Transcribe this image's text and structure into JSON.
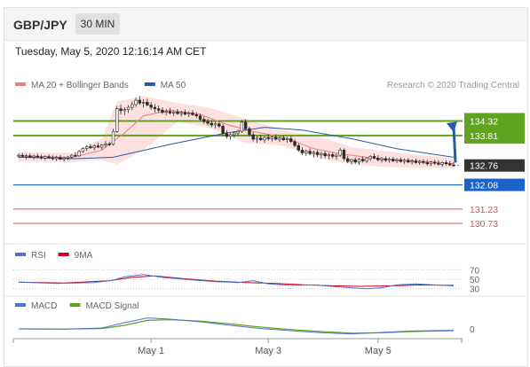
{
  "header": {
    "symbol": "GBP/JPY",
    "timeframe": "30 MIN",
    "datetime": "Tuesday, May 5, 2020 12:16:14 AM CET"
  },
  "colors": {
    "candle": "#2a2a2a",
    "ma20": "#f07b7b",
    "band_fill": "#fcd3d3",
    "ma50": "#2a5aa0",
    "resistance": "#5fa31e",
    "support": "#1a63c8",
    "target_line": "#e05050",
    "arrow": "#2a5aa0",
    "rsi": "#4a72d6",
    "rsi_ma": "#d0021b",
    "macd": "#4a72d6",
    "macd_signal": "#5fa31e",
    "last_price_bg": "#333333"
  },
  "main_legend": [
    {
      "label": "MA 20 + Bollinger Bands",
      "color": "#f07b7b"
    },
    {
      "label": "MA 50",
      "color": "#2a5aa0"
    }
  ],
  "credit": "Research © 2020 Trading Central",
  "rsi_legend": [
    {
      "label": "RSI",
      "color": "#4a72d6"
    },
    {
      "label": "9MA",
      "color": "#d0021b"
    }
  ],
  "macd_legend": [
    {
      "label": "MACD",
      "color": "#4a72d6"
    },
    {
      "label": "MACD Signal",
      "color": "#5fa31e"
    }
  ],
  "chart_data": [
    {
      "type": "line",
      "name": "price",
      "ylim": [
        130.2,
        135.3
      ],
      "candles": [
        [
          133.1,
          133.18,
          133.02,
          133.12
        ],
        [
          133.12,
          133.2,
          133.04,
          133.08
        ],
        [
          133.08,
          133.16,
          132.98,
          133.1
        ],
        [
          133.1,
          133.18,
          133.03,
          133.05
        ],
        [
          133.05,
          133.14,
          132.98,
          133.09
        ],
        [
          133.09,
          133.17,
          133.02,
          133.06
        ],
        [
          133.06,
          133.14,
          132.97,
          133.02
        ],
        [
          133.02,
          133.12,
          132.95,
          133.07
        ],
        [
          133.07,
          133.15,
          132.99,
          133.03
        ],
        [
          133.03,
          133.11,
          132.94,
          133.0
        ],
        [
          133.0,
          133.1,
          132.92,
          133.04
        ],
        [
          133.04,
          133.12,
          132.96,
          132.98
        ],
        [
          132.98,
          133.08,
          132.9,
          133.02
        ],
        [
          133.02,
          133.1,
          132.95,
          133.06
        ],
        [
          133.06,
          133.16,
          133.0,
          133.12
        ],
        [
          133.12,
          133.22,
          133.05,
          133.1
        ],
        [
          133.1,
          133.3,
          133.06,
          133.25
        ],
        [
          133.25,
          133.4,
          133.2,
          133.36
        ],
        [
          133.36,
          133.48,
          133.28,
          133.42
        ],
        [
          133.42,
          133.52,
          133.34,
          133.38
        ],
        [
          133.38,
          133.5,
          133.3,
          133.45
        ],
        [
          133.45,
          133.55,
          133.38,
          133.4
        ],
        [
          133.4,
          133.52,
          133.32,
          133.48
        ],
        [
          133.48,
          133.62,
          133.4,
          133.52
        ],
        [
          133.52,
          133.6,
          133.44,
          133.5
        ],
        [
          133.5,
          134.05,
          133.46,
          133.95
        ],
        [
          133.95,
          134.85,
          133.9,
          134.75
        ],
        [
          134.75,
          134.9,
          134.55,
          134.68
        ],
        [
          134.68,
          134.8,
          134.52,
          134.72
        ],
        [
          134.72,
          134.88,
          134.6,
          134.8
        ],
        [
          134.8,
          135.0,
          134.7,
          134.9
        ],
        [
          134.9,
          135.15,
          134.82,
          135.05
        ],
        [
          135.05,
          135.2,
          134.88,
          134.95
        ],
        [
          134.95,
          135.08,
          134.8,
          134.98
        ],
        [
          134.98,
          135.1,
          134.84,
          134.88
        ],
        [
          134.88,
          134.98,
          134.72,
          134.8
        ],
        [
          134.8,
          134.92,
          134.62,
          134.75
        ],
        [
          134.75,
          134.86,
          134.6,
          134.7
        ],
        [
          134.7,
          134.8,
          134.56,
          134.62
        ],
        [
          134.62,
          134.74,
          134.52,
          134.66
        ],
        [
          134.66,
          134.78,
          134.55,
          134.6
        ],
        [
          134.6,
          134.7,
          134.5,
          134.64
        ],
        [
          134.64,
          134.74,
          134.54,
          134.58
        ],
        [
          134.58,
          134.68,
          134.48,
          134.62
        ],
        [
          134.62,
          134.72,
          134.52,
          134.56
        ],
        [
          134.56,
          134.66,
          134.46,
          134.6
        ],
        [
          134.6,
          134.7,
          134.5,
          134.54
        ],
        [
          134.54,
          134.64,
          134.42,
          134.5
        ],
        [
          134.5,
          134.58,
          134.32,
          134.38
        ],
        [
          134.38,
          134.48,
          134.22,
          134.3
        ],
        [
          134.3,
          134.4,
          134.16,
          134.24
        ],
        [
          134.24,
          134.34,
          134.1,
          134.18
        ],
        [
          134.18,
          134.3,
          134.06,
          134.22
        ],
        [
          134.22,
          134.32,
          134.08,
          134.14
        ],
        [
          134.14,
          134.22,
          133.8,
          133.88
        ],
        [
          133.88,
          134.0,
          133.7,
          133.78
        ],
        [
          133.78,
          133.9,
          133.66,
          133.84
        ],
        [
          133.84,
          133.96,
          133.74,
          133.9
        ],
        [
          133.9,
          134.02,
          133.8,
          133.96
        ],
        [
          133.96,
          134.35,
          133.9,
          134.28
        ],
        [
          134.28,
          134.38,
          134.0,
          134.05
        ],
        [
          134.05,
          134.12,
          133.78,
          133.84
        ],
        [
          133.84,
          133.94,
          133.6,
          133.68
        ],
        [
          133.68,
          133.8,
          133.56,
          133.72
        ],
        [
          133.72,
          133.84,
          133.62,
          133.66
        ],
        [
          133.66,
          133.78,
          133.56,
          133.74
        ],
        [
          133.74,
          133.86,
          133.64,
          133.7
        ],
        [
          133.7,
          133.8,
          133.6,
          133.76
        ],
        [
          133.76,
          133.86,
          133.64,
          133.68
        ],
        [
          133.68,
          133.78,
          133.58,
          133.72
        ],
        [
          133.72,
          133.82,
          133.62,
          133.66
        ],
        [
          133.66,
          133.76,
          133.56,
          133.7
        ],
        [
          133.7,
          133.8,
          133.54,
          133.6
        ],
        [
          133.6,
          133.68,
          133.4,
          133.46
        ],
        [
          133.46,
          133.54,
          133.24,
          133.3
        ],
        [
          133.3,
          133.4,
          133.12,
          133.2
        ],
        [
          133.2,
          133.32,
          133.1,
          133.26
        ],
        [
          133.26,
          133.36,
          133.12,
          133.18
        ],
        [
          133.18,
          133.28,
          133.04,
          133.22
        ],
        [
          133.22,
          133.3,
          133.06,
          133.14
        ],
        [
          133.14,
          133.24,
          133.0,
          133.18
        ],
        [
          133.18,
          133.26,
          133.02,
          133.1
        ],
        [
          133.1,
          133.2,
          132.98,
          133.14
        ],
        [
          133.14,
          133.22,
          133.0,
          133.08
        ],
        [
          133.08,
          133.18,
          132.96,
          133.12
        ],
        [
          133.12,
          133.38,
          133.06,
          133.3
        ],
        [
          133.3,
          133.36,
          132.92,
          133.0
        ],
        [
          133.0,
          133.1,
          132.84,
          132.9
        ],
        [
          132.9,
          133.0,
          132.8,
          132.96
        ],
        [
          132.96,
          133.04,
          132.82,
          132.88
        ],
        [
          132.88,
          133.02,
          132.78,
          132.98
        ],
        [
          132.98,
          133.08,
          132.86,
          132.92
        ],
        [
          132.92,
          133.04,
          132.84,
          133.0
        ],
        [
          133.0,
          133.12,
          132.92,
          133.08
        ],
        [
          133.08,
          133.18,
          132.98,
          133.02
        ],
        [
          133.02,
          133.12,
          132.9,
          132.96
        ],
        [
          132.96,
          133.06,
          132.86,
          133.0
        ],
        [
          133.0,
          133.08,
          132.88,
          132.94
        ],
        [
          132.94,
          133.04,
          132.86,
          132.98
        ],
        [
          132.98,
          133.06,
          132.88,
          132.92
        ],
        [
          132.92,
          133.02,
          132.84,
          132.96
        ],
        [
          132.96,
          133.04,
          132.86,
          132.9
        ],
        [
          132.9,
          133.0,
          132.82,
          132.94
        ],
        [
          132.94,
          133.02,
          132.84,
          132.88
        ],
        [
          132.88,
          132.98,
          132.8,
          132.92
        ],
        [
          132.92,
          133.0,
          132.82,
          132.86
        ],
        [
          132.86,
          132.96,
          132.78,
          132.9
        ],
        [
          132.9,
          132.98,
          132.8,
          132.86
        ],
        [
          132.86,
          132.96,
          132.76,
          132.82
        ],
        [
          132.82,
          132.92,
          132.74,
          132.88
        ],
        [
          132.88,
          132.96,
          132.78,
          132.84
        ],
        [
          132.84,
          132.94,
          132.76,
          132.8
        ],
        [
          132.8,
          132.9,
          132.72,
          132.86
        ],
        [
          132.86,
          132.94,
          132.76,
          132.82
        ],
        [
          132.82,
          132.92,
          132.74,
          132.78
        ],
        [
          132.78,
          132.88,
          132.72,
          132.76
        ]
      ],
      "ma50": [
        [
          0,
          133.05
        ],
        [
          15,
          133.0
        ],
        [
          25,
          133.05
        ],
        [
          40,
          133.5
        ],
        [
          55,
          133.9
        ],
        [
          65,
          134.1
        ],
        [
          75,
          134.0
        ],
        [
          88,
          133.7
        ],
        [
          100,
          133.35
        ],
        [
          115,
          133.05
        ]
      ],
      "ma20": [
        [
          0,
          133.1
        ],
        [
          14,
          133.04
        ],
        [
          22,
          133.3
        ],
        [
          28,
          133.9
        ],
        [
          33,
          134.5
        ],
        [
          40,
          134.7
        ],
        [
          48,
          134.55
        ],
        [
          55,
          134.2
        ],
        [
          62,
          133.95
        ],
        [
          70,
          133.75
        ],
        [
          78,
          133.35
        ],
        [
          86,
          133.15
        ],
        [
          95,
          133.0
        ],
        [
          105,
          132.92
        ],
        [
          115,
          132.82
        ]
      ],
      "band_upper": [
        [
          0,
          133.22
        ],
        [
          14,
          133.2
        ],
        [
          22,
          133.7
        ],
        [
          26,
          135.0
        ],
        [
          33,
          135.2
        ],
        [
          42,
          134.95
        ],
        [
          50,
          134.8
        ],
        [
          60,
          134.4
        ],
        [
          70,
          134.0
        ],
        [
          80,
          133.75
        ],
        [
          88,
          133.4
        ],
        [
          98,
          133.25
        ],
        [
          108,
          133.1
        ],
        [
          115,
          133.0
        ]
      ],
      "band_lower": [
        [
          0,
          132.9
        ],
        [
          14,
          132.88
        ],
        [
          22,
          132.95
        ],
        [
          26,
          132.8
        ],
        [
          33,
          133.3
        ],
        [
          42,
          134.3
        ],
        [
          50,
          134.1
        ],
        [
          60,
          133.55
        ],
        [
          70,
          133.45
        ],
        [
          80,
          133.0
        ],
        [
          88,
          132.8
        ],
        [
          98,
          132.7
        ],
        [
          108,
          132.68
        ],
        [
          115,
          132.65
        ]
      ],
      "levels": [
        {
          "label": "134.32",
          "value": 134.32,
          "kind": "resistance"
        },
        {
          "label": "133.81",
          "value": 133.81,
          "kind": "resistance"
        },
        {
          "label": "132.76",
          "value": 132.76,
          "kind": "last"
        },
        {
          "label": "132.08",
          "value": 132.08,
          "kind": "support"
        },
        {
          "label": "131.23",
          "value": 131.23,
          "kind": "target"
        },
        {
          "label": "130.73",
          "value": 130.73,
          "kind": "target"
        }
      ]
    },
    {
      "type": "line",
      "name": "RSI",
      "ylim": [
        20,
        80
      ],
      "tick_labels": [
        {
          "label": "70",
          "value": 70
        },
        {
          "label": "50",
          "value": 50
        },
        {
          "label": "30",
          "value": 30
        }
      ],
      "rsi": [
        [
          0,
          44
        ],
        [
          10,
          41
        ],
        [
          20,
          43
        ],
        [
          25,
          48
        ],
        [
          28,
          55
        ],
        [
          33,
          60
        ],
        [
          38,
          54
        ],
        [
          45,
          49
        ],
        [
          52,
          45
        ],
        [
          58,
          43
        ],
        [
          62,
          47
        ],
        [
          66,
          40
        ],
        [
          72,
          37
        ],
        [
          78,
          38
        ],
        [
          84,
          34
        ],
        [
          88,
          32
        ],
        [
          92,
          30
        ],
        [
          96,
          32
        ],
        [
          100,
          38
        ],
        [
          105,
          40
        ],
        [
          110,
          38
        ],
        [
          115,
          36
        ]
      ],
      "rsi_ma": [
        [
          0,
          44
        ],
        [
          12,
          42
        ],
        [
          24,
          47
        ],
        [
          30,
          54
        ],
        [
          36,
          57
        ],
        [
          44,
          51
        ],
        [
          52,
          46
        ],
        [
          60,
          43
        ],
        [
          68,
          41
        ],
        [
          76,
          38
        ],
        [
          84,
          36
        ],
        [
          90,
          35
        ],
        [
          98,
          36
        ],
        [
          106,
          38
        ],
        [
          115,
          37
        ]
      ]
    },
    {
      "type": "line",
      "name": "MACD",
      "ylim": [
        -0.5,
        0.9
      ],
      "tick_labels": [
        {
          "label": "0",
          "value": 0
        }
      ],
      "macd": [
        [
          0,
          0.0
        ],
        [
          12,
          -0.02
        ],
        [
          22,
          0.05
        ],
        [
          28,
          0.35
        ],
        [
          34,
          0.62
        ],
        [
          40,
          0.55
        ],
        [
          48,
          0.4
        ],
        [
          56,
          0.2
        ],
        [
          64,
          0.02
        ],
        [
          72,
          -0.1
        ],
        [
          80,
          -0.22
        ],
        [
          88,
          -0.28
        ],
        [
          96,
          -0.2
        ],
        [
          104,
          -0.12
        ],
        [
          115,
          -0.08
        ]
      ],
      "macd_signal": [
        [
          0,
          0.0
        ],
        [
          12,
          -0.01
        ],
        [
          22,
          0.02
        ],
        [
          28,
          0.2
        ],
        [
          34,
          0.48
        ],
        [
          40,
          0.52
        ],
        [
          48,
          0.44
        ],
        [
          56,
          0.28
        ],
        [
          64,
          0.1
        ],
        [
          72,
          -0.04
        ],
        [
          80,
          -0.15
        ],
        [
          88,
          -0.24
        ],
        [
          96,
          -0.22
        ],
        [
          104,
          -0.15
        ],
        [
          115,
          -0.1
        ]
      ]
    }
  ],
  "x_axis": [
    {
      "label": "May 1",
      "index": 35
    },
    {
      "label": "May 3",
      "index": 66
    },
    {
      "label": "May 5",
      "index": 95
    }
  ]
}
